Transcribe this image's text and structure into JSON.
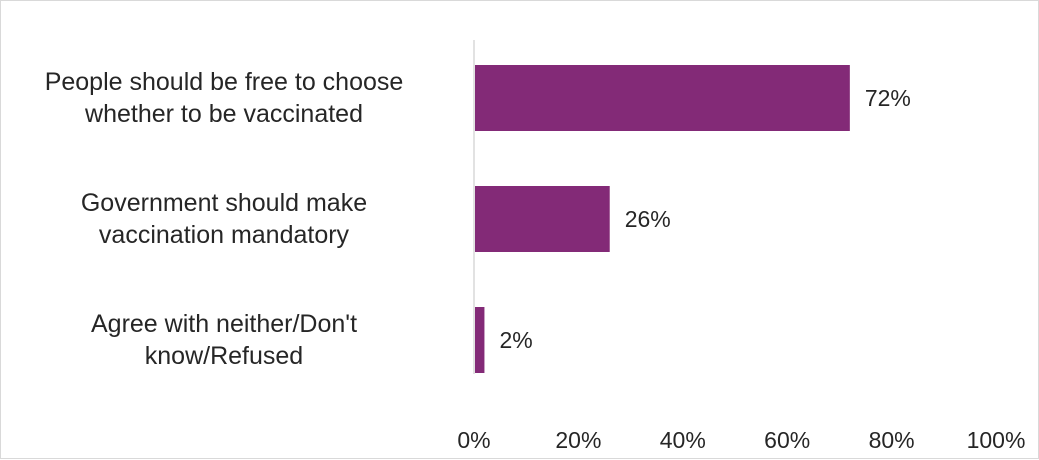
{
  "chart_data": {
    "type": "bar",
    "orientation": "horizontal",
    "categories": [
      [
        "People should be free to choose",
        "whether to be vaccinated"
      ],
      [
        "Government should make",
        "vaccination mandatory"
      ],
      [
        "Agree with neither/Don't",
        "know/Refused"
      ]
    ],
    "values": [
      72,
      26,
      2
    ],
    "data_labels": [
      "72%",
      "26%",
      "2%"
    ],
    "x_ticks": [
      "0%",
      "20%",
      "40%",
      "60%",
      "80%",
      "100%"
    ],
    "xlim": [
      0,
      100
    ],
    "grid": false,
    "legend": "none",
    "bar_color": "#832A77",
    "axis_color": "#d9d9d9"
  }
}
